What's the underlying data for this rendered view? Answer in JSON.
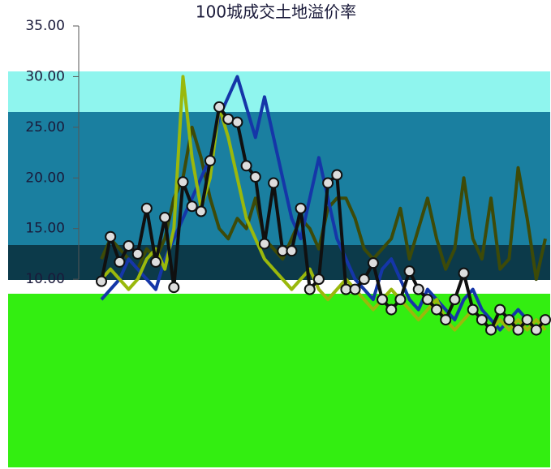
{
  "chart_data": {
    "type": "line",
    "title": "100城成交土地溢价率",
    "categories": [
      null,
      null,
      null,
      null,
      null,
      null,
      null,
      null,
      null,
      null,
      null,
      null,
      null,
      null,
      null,
      null,
      null,
      null,
      null,
      null,
      null,
      null,
      null,
      null,
      null,
      null,
      null,
      null,
      null,
      null,
      null,
      null,
      null,
      null,
      null,
      null,
      null,
      null,
      null,
      null,
      null,
      null,
      null,
      null,
      null,
      null,
      null,
      null,
      null,
      null
    ],
    "ylim": [
      0,
      35
    ],
    "yticks": [
      {
        "value": 10,
        "label": "10.00"
      },
      {
        "value": 15,
        "label": "15.00"
      },
      {
        "value": 20,
        "label": "20.00"
      },
      {
        "value": 25,
        "label": "25.00"
      },
      {
        "value": 30,
        "label": "30.00"
      },
      {
        "value": 35,
        "label": "35.00"
      }
    ],
    "series": [
      {
        "color": "#3d4a08",
        "markers": false,
        "values": [
          12,
          14,
          13,
          12,
          11,
          13,
          12,
          14,
          18,
          20,
          25,
          22,
          18,
          15,
          14,
          16,
          15,
          18,
          14,
          13,
          12,
          14,
          16,
          15,
          13,
          17,
          18,
          18,
          16,
          13,
          12,
          13,
          14,
          17,
          12,
          15,
          18,
          14,
          11,
          13,
          20,
          14,
          12,
          18,
          11,
          12,
          21,
          16,
          10,
          14
        ]
      },
      {
        "color": "#1536a8",
        "markers": false,
        "values": [
          8,
          9,
          10,
          12,
          11,
          10,
          9,
          12,
          14,
          16,
          18,
          20,
          22,
          26,
          28,
          30,
          27,
          24,
          28,
          24,
          20,
          16,
          14,
          18,
          22,
          18,
          14,
          12,
          10,
          9,
          8,
          11,
          12,
          10,
          8,
          7,
          9,
          8,
          7,
          6,
          8,
          9,
          7,
          6,
          5,
          6,
          7,
          6,
          5,
          6
        ]
      },
      {
        "color": "#9ab80c",
        "markers": false,
        "values": [
          10,
          11,
          10,
          9,
          10,
          12,
          13,
          11,
          15,
          30,
          22,
          17,
          20,
          27,
          24,
          20,
          16,
          14,
          12,
          11,
          10,
          9,
          10,
          11,
          9,
          8,
          9,
          10,
          9,
          8,
          7,
          8,
          9,
          8,
          7,
          6,
          7,
          8,
          6,
          5,
          6,
          7,
          6,
          5,
          6,
          5,
          6,
          5,
          6,
          5
        ]
      },
      {
        "color": "#101010",
        "markers": true,
        "values": [
          9.8,
          14.2,
          11.7,
          13.3,
          12.5,
          17,
          11.7,
          16.1,
          9.2,
          19.6,
          17.2,
          16.7,
          21.7,
          27,
          25.8,
          25.5,
          21.2,
          20.1,
          13.5,
          19.5,
          12.8,
          12.8,
          17,
          9,
          10,
          19.5,
          20.3,
          9,
          9,
          10,
          11.6,
          8,
          7,
          8,
          10.8,
          9,
          8,
          7,
          6,
          8,
          10.6,
          7,
          6,
          5,
          7,
          6,
          5,
          6,
          5,
          6
        ]
      }
    ]
  }
}
